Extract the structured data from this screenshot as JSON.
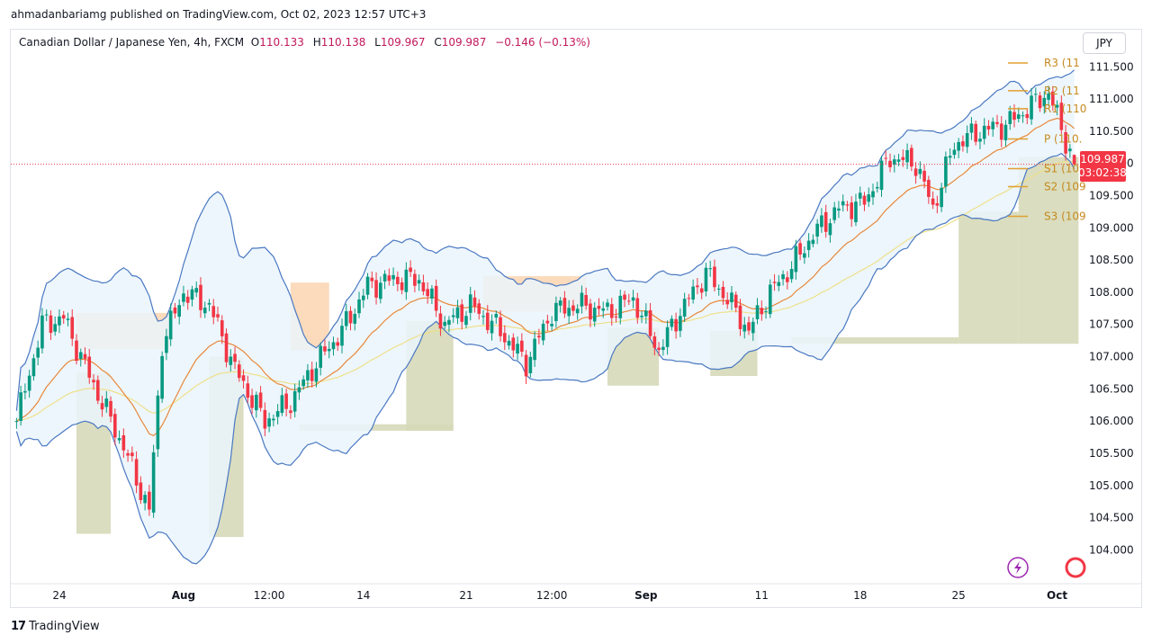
{
  "publisher_line": "ahmadanbariamg published on TradingView.com, Oct 02, 2023 12:57 UTC+3",
  "legend": {
    "symbol": "Canadian Dollar / Japanese Yen, 4h, FXCM",
    "o_label": "O",
    "o_value": "110.133",
    "h_label": "H",
    "h_value": "110.138",
    "l_label": "L",
    "l_value": "109.967",
    "c_label": "C",
    "c_value": "109.987",
    "change": "−0.146 (−0.13%)"
  },
  "currency_button": "JPY",
  "price_tag": {
    "price": "109.987",
    "countdown": "03:02:38",
    "color": "#f23645"
  },
  "brand": "TradingView",
  "colors": {
    "up": "#089981",
    "down": "#f23645",
    "bollinger": "#4a78c2",
    "bollinger_fill": "#eaf5fb",
    "ema_fast": "#e8883a",
    "ema_slow": "#efe08a",
    "pivot": "#e0a030",
    "supply_zone": "#fbd7b5",
    "demand_zone": "#d6d9b8"
  },
  "icons": [
    "lightning-icon",
    "flag-icon"
  ],
  "chart_data": {
    "type": "candlestick",
    "timeframe": "4h",
    "y_axis": {
      "min": 103.6,
      "max": 111.7,
      "ticks": [
        "104.000",
        "104.500",
        "105.000",
        "105.500",
        "106.000",
        "106.500",
        "107.000",
        "107.500",
        "108.000",
        "108.500",
        "109.000",
        "109.500",
        "110.000",
        "110.500",
        "111.000",
        "111.500"
      ]
    },
    "x_axis": {
      "candle_count": 248,
      "ticks": [
        {
          "label": "24",
          "index": 10
        },
        {
          "label": "Aug",
          "index": 39
        },
        {
          "label": "12:00",
          "index": 59
        },
        {
          "label": "14",
          "index": 81
        },
        {
          "label": "21",
          "index": 105
        },
        {
          "label": "12:00",
          "index": 125
        },
        {
          "label": "Sep",
          "index": 147
        },
        {
          "label": "11",
          "index": 174
        },
        {
          "label": "18",
          "index": 197
        },
        {
          "label": "25",
          "index": 220
        },
        {
          "label": "Oct",
          "index": 243
        }
      ]
    },
    "anchors": [
      [
        0,
        106.0
      ],
      [
        6,
        107.5
      ],
      [
        11,
        107.6
      ],
      [
        17,
        106.7
      ],
      [
        25,
        105.6
      ],
      [
        31,
        104.6
      ],
      [
        34,
        107.2
      ],
      [
        39,
        108.0
      ],
      [
        45,
        107.8
      ],
      [
        51,
        106.8
      ],
      [
        58,
        106.0
      ],
      [
        64,
        106.3
      ],
      [
        70,
        106.9
      ],
      [
        76,
        107.4
      ],
      [
        82,
        108.1
      ],
      [
        88,
        108.2
      ],
      [
        94,
        108.2
      ],
      [
        100,
        107.5
      ],
      [
        106,
        107.8
      ],
      [
        113,
        107.4
      ],
      [
        119,
        106.9
      ],
      [
        125,
        107.7
      ],
      [
        131,
        107.8
      ],
      [
        138,
        107.7
      ],
      [
        144,
        107.9
      ],
      [
        150,
        107.1
      ],
      [
        155,
        107.7
      ],
      [
        161,
        108.3
      ],
      [
        166,
        107.9
      ],
      [
        171,
        107.4
      ],
      [
        176,
        108.0
      ],
      [
        181,
        108.4
      ],
      [
        186,
        108.9
      ],
      [
        192,
        109.3
      ],
      [
        198,
        109.4
      ],
      [
        204,
        110.1
      ],
      [
        210,
        110.0
      ],
      [
        214,
        109.3
      ],
      [
        219,
        110.3
      ],
      [
        225,
        110.5
      ],
      [
        231,
        110.6
      ],
      [
        237,
        110.9
      ],
      [
        241,
        111.1
      ],
      [
        247,
        109.987
      ]
    ],
    "last": {
      "open": 110.133,
      "high": 110.138,
      "low": 109.967,
      "close": 109.987
    },
    "indicators": [
      "Bollinger Bands",
      "EMA fast",
      "EMA slow"
    ],
    "pivot_levels": [
      {
        "label": "R3 (11",
        "value": 111.56
      },
      {
        "label": "R2 (11",
        "value": 111.13
      },
      {
        "label": "R1 (110",
        "value": 110.85
      },
      {
        "label": "P (110.",
        "value": 110.38
      },
      {
        "label": "S1 (109",
        "value": 109.92
      },
      {
        "label": "S2 (109",
        "value": 109.64
      },
      {
        "label": "S3 (109",
        "value": 109.18
      }
    ],
    "zones": [
      {
        "type": "supply",
        "from": 14,
        "to": 36,
        "top": 107.68,
        "bottom": 107.12
      },
      {
        "type": "supply",
        "from": 64,
        "to": 73,
        "top": 108.15,
        "bottom": 107.1
      },
      {
        "type": "supply",
        "from": 109,
        "to": 133,
        "top": 108.25,
        "bottom": 107.7
      },
      {
        "type": "demand",
        "from": 14,
        "to": 22,
        "top": 106.75,
        "bottom": 104.25
      },
      {
        "type": "demand",
        "from": 45,
        "to": 53,
        "top": 107.0,
        "bottom": 104.2
      },
      {
        "type": "demand",
        "from": 66,
        "to": 102,
        "top": 105.95,
        "bottom": 105.85
      },
      {
        "type": "demand",
        "from": 91,
        "to": 102,
        "top": 107.55,
        "bottom": 105.85
      },
      {
        "type": "demand",
        "from": 138,
        "to": 150,
        "top": 107.45,
        "bottom": 106.55
      },
      {
        "type": "demand",
        "from": 162,
        "to": 173,
        "top": 107.4,
        "bottom": 106.7
      },
      {
        "type": "demand",
        "from": 181,
        "to": 220,
        "top": 107.3,
        "bottom": 107.2
      },
      {
        "type": "demand",
        "from": 220,
        "to": 234,
        "top": 109.25,
        "bottom": 107.2
      },
      {
        "type": "demand",
        "from": 234,
        "to": 248,
        "top": 110.1,
        "bottom": 107.2
      }
    ]
  }
}
